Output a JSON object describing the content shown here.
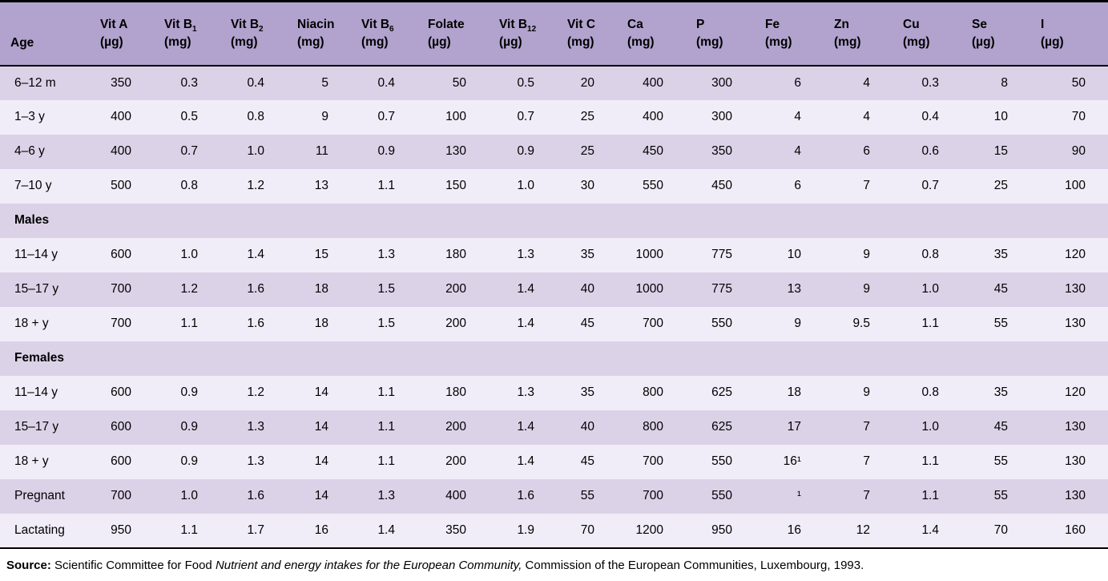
{
  "table": {
    "columns": [
      {
        "label": "Age",
        "sub": "",
        "unit": ""
      },
      {
        "label": "Vit A",
        "sub": "",
        "unit": "(µg)"
      },
      {
        "label": "Vit B",
        "sub": "1",
        "unit": "(mg)"
      },
      {
        "label": "Vit B",
        "sub": "2",
        "unit": "(mg)"
      },
      {
        "label": "Niacin",
        "sub": "",
        "unit": "(mg)"
      },
      {
        "label": "Vit B",
        "sub": "6",
        "unit": "(mg)"
      },
      {
        "label": "Folate",
        "sub": "",
        "unit": "(µg)"
      },
      {
        "label": "Vit B",
        "sub": "12",
        "unit": "(µg)"
      },
      {
        "label": "Vit C",
        "sub": "",
        "unit": "(mg)"
      },
      {
        "label": "Ca",
        "sub": "",
        "unit": "(mg)"
      },
      {
        "label": "P",
        "sub": "",
        "unit": "(mg)"
      },
      {
        "label": "Fe",
        "sub": "",
        "unit": "(mg)"
      },
      {
        "label": "Zn",
        "sub": "",
        "unit": "(mg)"
      },
      {
        "label": "Cu",
        "sub": "",
        "unit": "(mg)"
      },
      {
        "label": "Se",
        "sub": "",
        "unit": "(µg)"
      },
      {
        "label": "I",
        "sub": "",
        "unit": "(µg)"
      }
    ],
    "rows": [
      {
        "type": "data",
        "age": "6–12 m",
        "values": [
          "350",
          "0.3",
          "0.4",
          "5",
          "0.4",
          "50",
          "0.5",
          "20",
          "400",
          "300",
          "6",
          "4",
          "0.3",
          "8",
          "50"
        ]
      },
      {
        "type": "data",
        "age": "1–3 y",
        "values": [
          "400",
          "0.5",
          "0.8",
          "9",
          "0.7",
          "100",
          "0.7",
          "25",
          "400",
          "300",
          "4",
          "4",
          "0.4",
          "10",
          "70"
        ]
      },
      {
        "type": "data",
        "age": "4–6 y",
        "values": [
          "400",
          "0.7",
          "1.0",
          "11",
          "0.9",
          "130",
          "0.9",
          "25",
          "450",
          "350",
          "4",
          "6",
          "0.6",
          "15",
          "90"
        ]
      },
      {
        "type": "data",
        "age": "7–10 y",
        "values": [
          "500",
          "0.8",
          "1.2",
          "13",
          "1.1",
          "150",
          "1.0",
          "30",
          "550",
          "450",
          "6",
          "7",
          "0.7",
          "25",
          "100"
        ]
      },
      {
        "type": "section",
        "label": "Males"
      },
      {
        "type": "data",
        "age": "11–14 y",
        "values": [
          "600",
          "1.0",
          "1.4",
          "15",
          "1.3",
          "180",
          "1.3",
          "35",
          "1000",
          "775",
          "10",
          "9",
          "0.8",
          "35",
          "120"
        ]
      },
      {
        "type": "data",
        "age": "15–17 y",
        "values": [
          "700",
          "1.2",
          "1.6",
          "18",
          "1.5",
          "200",
          "1.4",
          "40",
          "1000",
          "775",
          "13",
          "9",
          "1.0",
          "45",
          "130"
        ]
      },
      {
        "type": "data",
        "age": "18 + y",
        "values": [
          "700",
          "1.1",
          "1.6",
          "18",
          "1.5",
          "200",
          "1.4",
          "45",
          "700",
          "550",
          "9",
          "9.5",
          "1.1",
          "55",
          "130"
        ]
      },
      {
        "type": "section",
        "label": "Females"
      },
      {
        "type": "data",
        "age": "11–14 y",
        "values": [
          "600",
          "0.9",
          "1.2",
          "14",
          "1.1",
          "180",
          "1.3",
          "35",
          "800",
          "625",
          "18",
          "9",
          "0.8",
          "35",
          "120"
        ]
      },
      {
        "type": "data",
        "age": "15–17 y",
        "values": [
          "600",
          "0.9",
          "1.3",
          "14",
          "1.1",
          "200",
          "1.4",
          "40",
          "800",
          "625",
          "17",
          "7",
          "1.0",
          "45",
          "130"
        ]
      },
      {
        "type": "data",
        "age": "18 + y",
        "values": [
          "600",
          "0.9",
          "1.3",
          "14",
          "1.1",
          "200",
          "1.4",
          "45",
          "700",
          "550",
          "16¹",
          "7",
          "1.1",
          "55",
          "130"
        ]
      },
      {
        "type": "data",
        "age": "Pregnant",
        "values": [
          "700",
          "1.0",
          "1.6",
          "14",
          "1.3",
          "400",
          "1.6",
          "55",
          "700",
          "550",
          "¹",
          "7",
          "1.1",
          "55",
          "130"
        ]
      },
      {
        "type": "data",
        "age": "Lactating",
        "values": [
          "950",
          "1.1",
          "1.7",
          "16",
          "1.4",
          "350",
          "1.9",
          "70",
          "1200",
          "950",
          "16",
          "12",
          "1.4",
          "70",
          "160"
        ]
      }
    ]
  },
  "colors": {
    "header_bg": "#b1a3cd",
    "row_dark": "#dcd2e8",
    "row_light": "#f1edf8",
    "border": "#000000"
  },
  "footer": {
    "source_label": "Source:",
    "text_before_italic": " Scientific Committee for Food ",
    "italic_title": "Nutrient and energy intakes for the European Community,",
    "text_after_italic": " Commission of the European Communities, Luxembourg, 1993."
  }
}
